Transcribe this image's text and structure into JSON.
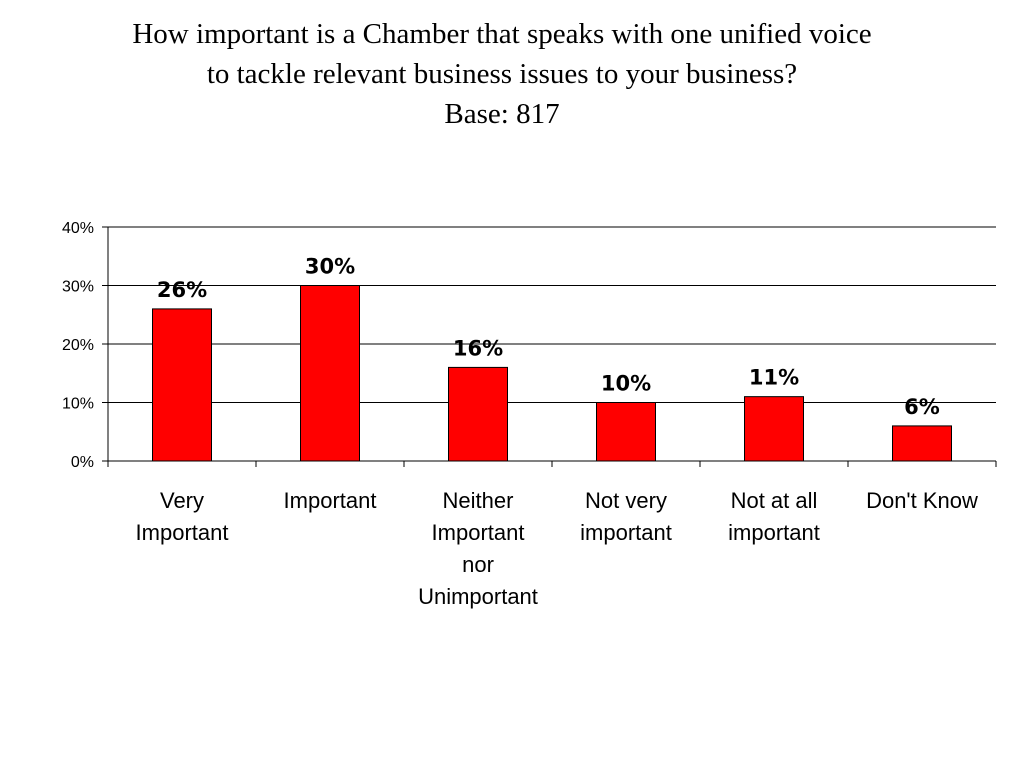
{
  "chart_data": {
    "type": "bar",
    "title": [
      "How important is a Chamber that speaks with one unified voice",
      "to tackle relevant business issues to your business?",
      "Base: 817"
    ],
    "categories": [
      [
        "Very",
        "Important"
      ],
      [
        "Important"
      ],
      [
        "Neither",
        "Important",
        "nor",
        "Unimportant"
      ],
      [
        "Not very",
        "important"
      ],
      [
        "Not at all",
        "important"
      ],
      [
        "Don't Know"
      ]
    ],
    "values": [
      26,
      30,
      16,
      10,
      11,
      6
    ],
    "data_labels": [
      "26%",
      "30%",
      "16%",
      "10%",
      "11%",
      "6%"
    ],
    "yticks": [
      0,
      10,
      20,
      30,
      40
    ],
    "ytick_labels": [
      "0%",
      "10%",
      "20%",
      "30%",
      "40%"
    ],
    "ylim": [
      0,
      40
    ],
    "xlabel": "",
    "ylabel": "",
    "grid": true,
    "legend": "none",
    "bar_color": "#ff0000",
    "bar_edge_color": "#000000"
  }
}
